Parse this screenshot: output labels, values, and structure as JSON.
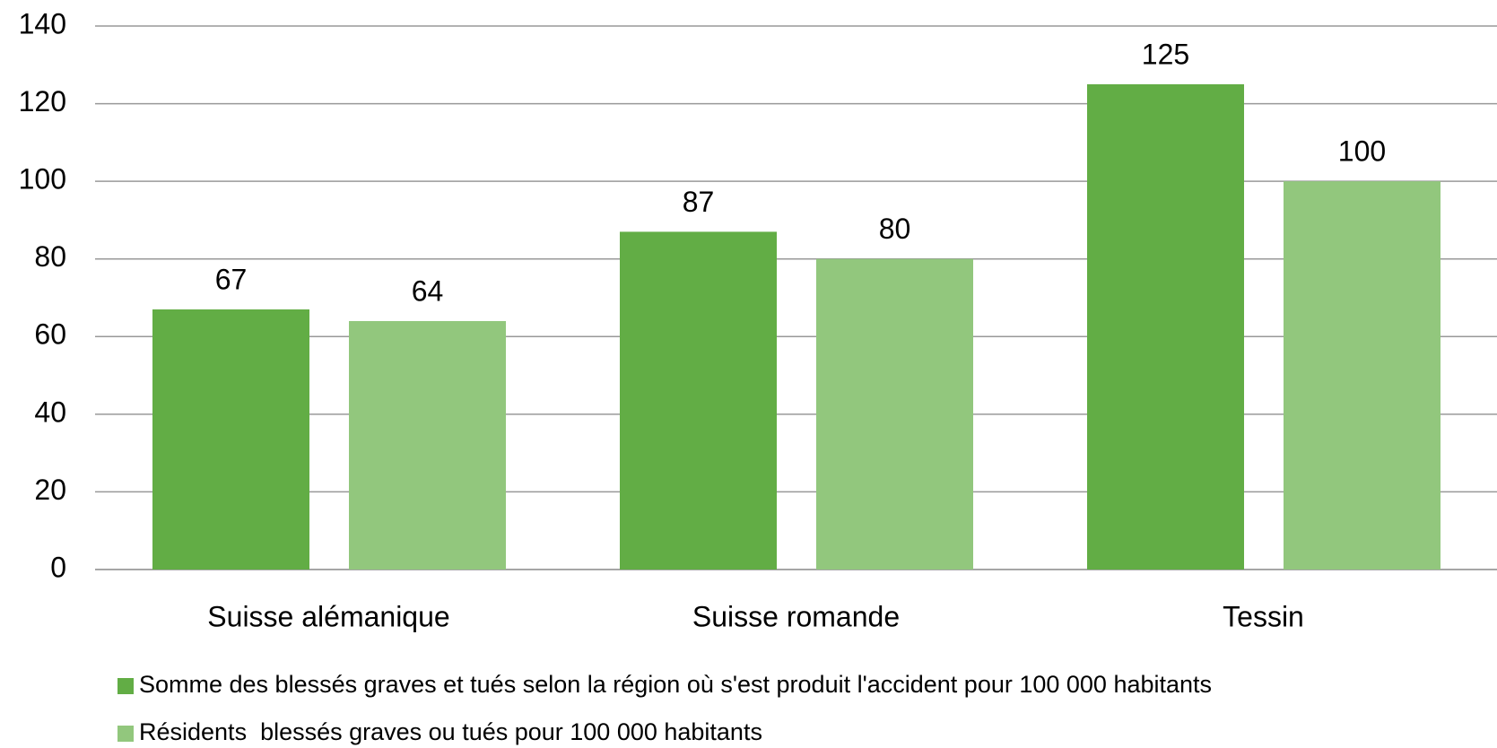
{
  "chart_data": {
    "type": "bar",
    "categories": [
      "Suisse alémanique",
      "Suisse romande",
      "Tessin"
    ],
    "series": [
      {
        "name": "Somme des blessés graves et tués selon la région où s'est produit l'accident pour 100 000 habitants",
        "color": "#62ad45",
        "values": [
          67,
          87,
          125
        ]
      },
      {
        "name": "Résidents  blessés graves ou tués pour 100 000 habitants",
        "color": "#92c77d",
        "values": [
          64,
          80,
          100
        ]
      }
    ],
    "ylim": [
      0,
      140
    ],
    "yticks": [
      0,
      20,
      40,
      60,
      80,
      100,
      120,
      140
    ],
    "grid": true,
    "legend": "bottom"
  }
}
